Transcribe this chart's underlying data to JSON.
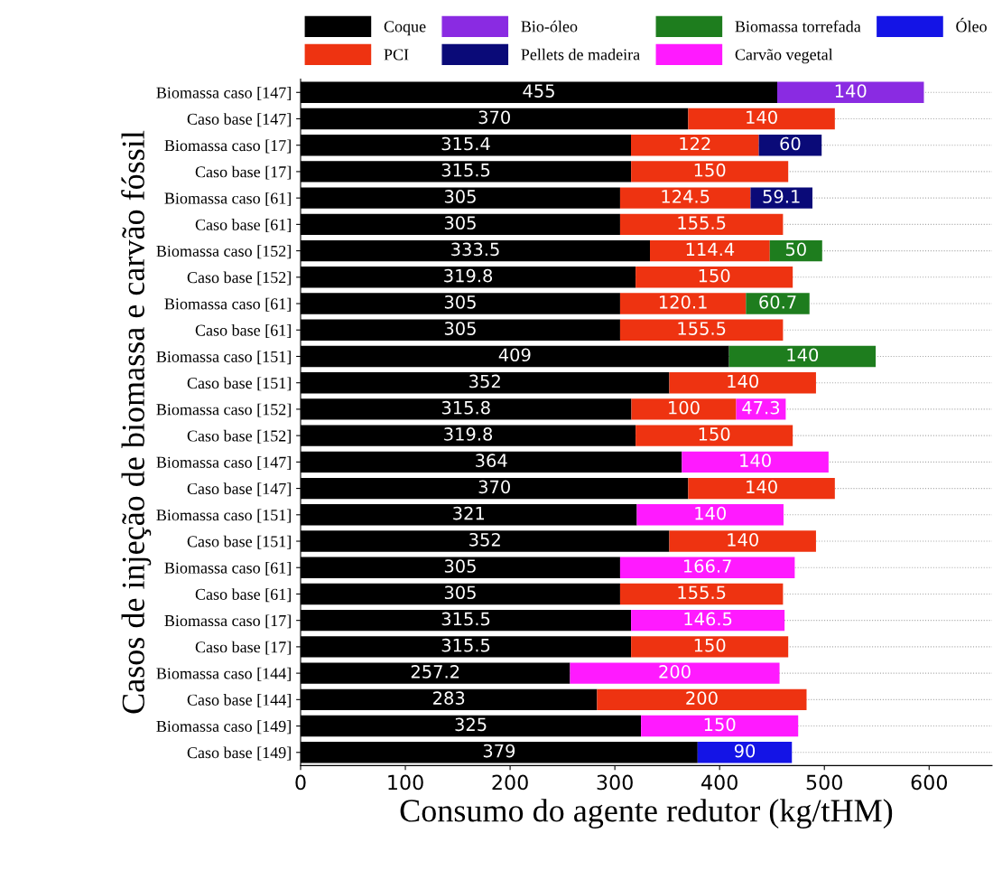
{
  "chart_data": {
    "type": "bar",
    "orientation": "horizontal",
    "stacked": true,
    "data_labels": true,
    "grid": "y",
    "legend": "top",
    "xlabel": "Consumo do agente redutor (kg/tHM)",
    "ylabel": "Casos de injeção de biomassa e carvão fóssil",
    "xlim": [
      0,
      660
    ],
    "xticks": [
      0,
      100,
      200,
      300,
      400,
      500,
      600
    ],
    "categories": [
      "Biomassa caso [147]",
      "Caso base [147]",
      "Biomassa caso [17]",
      "Caso base [17]",
      "Biomassa caso [61]",
      "Caso base [61]",
      "Biomassa caso [152]",
      "Caso base [152]",
      "Biomassa caso [61]",
      "Caso base [61]",
      "Biomassa caso [151]",
      "Caso base [151]",
      "Biomassa caso [152]",
      "Caso base [152]",
      "Biomassa caso [147]",
      "Caso base [147]",
      "Biomassa caso [151]",
      "Caso base [151]",
      "Biomassa caso [61]",
      "Caso base [61]",
      "Biomassa caso [17]",
      "Caso base [17]",
      "Biomassa caso [144]",
      "Caso base [144]",
      "Biomassa caso [149]",
      "Caso base [149]"
    ],
    "series": [
      {
        "name": "Coque",
        "color": "#000000",
        "values": [
          455,
          370,
          315.4,
          315.5,
          305,
          305,
          333.5,
          319.8,
          305,
          305,
          409,
          352,
          315.8,
          319.8,
          364,
          370,
          321,
          352,
          305,
          305,
          315.5,
          315.5,
          257.2,
          283,
          325,
          379
        ]
      },
      {
        "name": "PCI",
        "color": "#ee3311",
        "values": [
          null,
          140,
          122,
          150,
          124.5,
          155.5,
          114.4,
          150,
          120.1,
          155.5,
          null,
          140,
          100,
          150,
          null,
          140,
          null,
          140,
          null,
          155.5,
          null,
          150,
          null,
          200,
          null,
          null
        ]
      },
      {
        "name": "Bio-óleo",
        "color": "#8a2be2",
        "values": [
          140,
          null,
          null,
          null,
          null,
          null,
          null,
          null,
          null,
          null,
          null,
          null,
          null,
          null,
          null,
          null,
          null,
          null,
          null,
          null,
          null,
          null,
          null,
          null,
          null,
          null
        ]
      },
      {
        "name": "Pellets de madeira",
        "color": "#0a0a78",
        "values": [
          null,
          null,
          60,
          null,
          59.1,
          null,
          null,
          null,
          null,
          null,
          null,
          null,
          null,
          null,
          null,
          null,
          null,
          null,
          null,
          null,
          null,
          null,
          null,
          null,
          null,
          null
        ]
      },
      {
        "name": "Biomassa torrefada",
        "color": "#1e7d1e",
        "values": [
          null,
          null,
          null,
          null,
          null,
          null,
          50,
          null,
          60.7,
          null,
          140,
          null,
          null,
          null,
          null,
          null,
          null,
          null,
          null,
          null,
          null,
          null,
          null,
          null,
          null,
          null
        ]
      },
      {
        "name": "Carvão vegetal",
        "color": "#ff1aff",
        "values": [
          null,
          null,
          null,
          null,
          null,
          null,
          null,
          null,
          null,
          null,
          null,
          null,
          47.3,
          null,
          140,
          null,
          140,
          null,
          166.7,
          null,
          146.5,
          null,
          200,
          null,
          150,
          null
        ]
      },
      {
        "name": "Óleo",
        "color": "#1414e6",
        "values": [
          null,
          null,
          null,
          null,
          null,
          null,
          null,
          null,
          null,
          null,
          null,
          null,
          null,
          null,
          null,
          null,
          null,
          null,
          null,
          null,
          null,
          null,
          null,
          null,
          null,
          90
        ]
      }
    ]
  }
}
